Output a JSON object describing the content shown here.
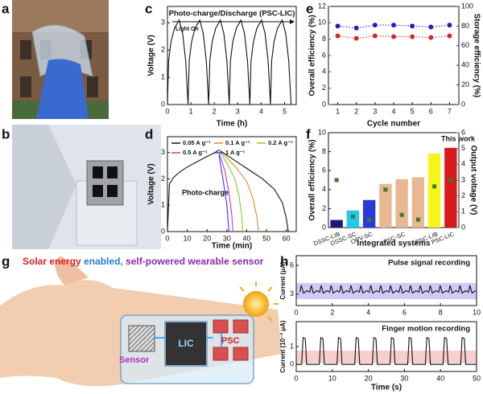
{
  "panels": {
    "labels": [
      "a",
      "b",
      "c",
      "d",
      "e",
      "f",
      "g",
      "h"
    ]
  },
  "illustration": {
    "title_parts": [
      "Solar energy",
      "enabled,",
      "self-powered wearable sensor"
    ],
    "labels": [
      "Sensor",
      "LIC",
      "PSC"
    ]
  },
  "chart_data": [
    {
      "type": "line",
      "title": "Photo-charge/Discharge (PSC-LIC)",
      "title_color": "#b01010",
      "annotations": [
        "Light On"
      ],
      "xlabel": "Time (h)",
      "ylabel": "Voltage (V)",
      "x": [
        0,
        0.05,
        0.15,
        0.3,
        0.5,
        0.65,
        0.78,
        0.88,
        0.93,
        1.03,
        1.18,
        1.38,
        1.53,
        1.66,
        1.76,
        1.81,
        1.91,
        2.06,
        2.26,
        2.41,
        2.54,
        2.64,
        2.69,
        2.79,
        2.94,
        3.14,
        3.29,
        3.42,
        3.52,
        3.57,
        3.67,
        3.82,
        4.02,
        4.17,
        4.3,
        4.4,
        4.45,
        4.55,
        4.7,
        4.9,
        5.05,
        5.18,
        5.28
      ],
      "series": [
        {
          "color": "#111111",
          "values": [
            0,
            1.6,
            2.3,
            2.8,
            3.1,
            2.6,
            1.6,
            0,
            1.6,
            2.3,
            2.8,
            3.1,
            2.6,
            1.6,
            0,
            1.6,
            2.3,
            2.8,
            3.1,
            2.6,
            1.6,
            0,
            1.6,
            2.3,
            2.8,
            3.1,
            2.6,
            1.6,
            0,
            1.6,
            2.3,
            2.8,
            3.1,
            2.6,
            1.6,
            0,
            1.6,
            2.3,
            2.8,
            3.1,
            2.6,
            1.6,
            0
          ]
        }
      ],
      "xlim": [
        0,
        5.5
      ],
      "xticks": [
        0,
        1,
        2,
        3,
        4,
        5
      ],
      "ylim": [
        0,
        3.6
      ],
      "yticks": [
        0,
        1,
        2,
        3
      ]
    },
    {
      "type": "line",
      "annotations": [
        "Photo-charge"
      ],
      "xlabel": "Time (min)",
      "ylabel": "Voltage (V)",
      "legend": "upper left",
      "series": [
        {
          "name": "0.05 A g⁻¹",
          "color": "#111111",
          "x": [
            0,
            1,
            3,
            6,
            10,
            15,
            20,
            24,
            26,
            30,
            36,
            42,
            48,
            54,
            58,
            60,
            61
          ],
          "values": [
            0,
            1.8,
            2.05,
            2.25,
            2.45,
            2.65,
            2.85,
            3.0,
            3.1,
            2.9,
            2.6,
            2.3,
            2.0,
            1.6,
            1.1,
            0.5,
            0
          ]
        },
        {
          "name": "0.1 A g⁻¹",
          "color": "#e6862a",
          "x": [
            26,
            30,
            35,
            40,
            43,
            45,
            46
          ],
          "values": [
            3.1,
            2.8,
            2.4,
            1.9,
            1.3,
            0.6,
            0
          ]
        },
        {
          "name": "0.2 A g⁻¹",
          "color": "#7ed321",
          "x": [
            26,
            30,
            34,
            36,
            37.5,
            38
          ],
          "values": [
            3.1,
            2.6,
            2.0,
            1.4,
            0.6,
            0
          ]
        },
        {
          "name": "0.5 A g⁻¹",
          "color": "#cc33cc",
          "x": [
            26,
            29,
            31,
            32.5,
            33
          ],
          "values": [
            3.0,
            2.3,
            1.5,
            0.6,
            0
          ]
        },
        {
          "name": "1 A g⁻¹",
          "color": "#3333ff",
          "x": [
            26,
            28,
            30,
            31
          ],
          "values": [
            2.9,
            2.0,
            1.0,
            0
          ]
        }
      ],
      "xlim": [
        0,
        65
      ],
      "xticks": [
        0,
        10,
        20,
        30,
        40,
        50,
        60
      ],
      "ylim": [
        0,
        3.6
      ],
      "yticks": [
        0,
        1,
        2,
        3
      ]
    },
    {
      "type": "line",
      "markers": true,
      "linestyle": "dotted",
      "xlabel": "Cycle number",
      "ylabel": "Overall efficiency (%)",
      "y2label": "Storage efficiency (%)",
      "y_color": "#d62728",
      "y2_color": "#1f1fbf",
      "x": [
        1,
        2,
        3,
        4,
        5,
        6,
        7
      ],
      "series": [
        {
          "color": "#d62728",
          "values": [
            8.4,
            8.1,
            8.4,
            8.3,
            8.3,
            8.2,
            8.4
          ]
        },
        {
          "color": "#1f1fbf",
          "axis": "y2",
          "values": [
            80,
            78,
            81,
            81,
            80,
            79,
            81
          ]
        }
      ],
      "xlim": [
        0.5,
        7.5
      ],
      "xticks": [
        1,
        2,
        3,
        4,
        5,
        6,
        7
      ],
      "ylim": [
        0,
        12
      ],
      "yticks": [
        0,
        2,
        4,
        6,
        8,
        10,
        12
      ],
      "y2lim": [
        0,
        100
      ],
      "y2ticks": [
        0,
        20,
        40,
        60,
        80,
        100
      ]
    },
    {
      "type": "bar",
      "annotations": [
        "This work"
      ],
      "xlabel": "Integrated systems",
      "ylabel": "Overall efficiency (%)",
      "y2label": "Output voltage (V)",
      "y2_color": "#3a9a2a",
      "categories": [
        "DSSC-LIB",
        "DSSC-SC",
        "OPV-SC",
        null,
        "PSC-SC",
        null,
        "PSC-LIB",
        "PSC-LIC"
      ],
      "values": [
        0.8,
        1.8,
        2.9,
        4.6,
        5.1,
        5.3,
        7.8,
        8.4
      ],
      "colors": [
        "#1a1a7a",
        "#22c8e8",
        "#2a3ad8",
        "#e8b890",
        "#e8b890",
        "#e8b890",
        "#f5f51a",
        "#d81a1a"
      ],
      "series": [
        {
          "axis": "y2",
          "marker": "square",
          "color": "#3a7a2a",
          "values": [
            3.0,
            0.7,
            0.5,
            2.4,
            0.8,
            0.5,
            2.6,
            3.0
          ]
        }
      ],
      "ylim": [
        0,
        10
      ],
      "yticks": [
        0,
        2,
        4,
        6,
        8,
        10
      ],
      "y2lim": [
        0,
        6
      ],
      "y2ticks": [
        0,
        1,
        2,
        3,
        4,
        5,
        6
      ]
    },
    {
      "type": "line",
      "title": "Pulse signal recording",
      "title_color": "#1f1fd0",
      "ylabel": "Current (μA)",
      "x": [
        0.2,
        0.28,
        0.4,
        0.6,
        0.75,
        0.83,
        0.95,
        1.15,
        1.3,
        1.38,
        1.5,
        1.7,
        1.85,
        1.93,
        2.05,
        2.25,
        2.4,
        2.48,
        2.6,
        2.8,
        2.95,
        3.03,
        3.15,
        3.35,
        3.5,
        3.58,
        3.7,
        3.9,
        4.05,
        4.13,
        4.25,
        4.45,
        4.6,
        4.68,
        4.8,
        5.0,
        5.15,
        5.23,
        5.35,
        5.55,
        5.7,
        5.78,
        5.9,
        6.1,
        6.25,
        6.33,
        6.45,
        6.65,
        6.8,
        6.88,
        7.0,
        7.2,
        7.35,
        7.43,
        7.55,
        7.75,
        7.9,
        7.98,
        8.1,
        8.3,
        8.45,
        8.53,
        8.65,
        8.85,
        9.0,
        9.08,
        9.2,
        9.4,
        9.55,
        9.63,
        9.75,
        9.95
      ],
      "series": [
        {
          "color": "#111111",
          "values": [
            3.2,
            3.9,
            3.1,
            3.35,
            3.2,
            3.9,
            3.1,
            3.35,
            3.2,
            3.9,
            3.1,
            3.35,
            3.2,
            3.9,
            3.1,
            3.35,
            3.2,
            3.9,
            3.1,
            3.35,
            3.2,
            3.9,
            3.1,
            3.35,
            3.2,
            3.9,
            3.1,
            3.35,
            3.2,
            3.9,
            3.1,
            3.35,
            3.2,
            3.9,
            3.1,
            3.35,
            3.2,
            3.9,
            3.1,
            3.35,
            3.2,
            3.9,
            3.1,
            3.35,
            3.2,
            3.9,
            3.1,
            3.35,
            3.2,
            3.9,
            3.1,
            3.35,
            3.2,
            3.9,
            3.1,
            3.35,
            3.2,
            3.9,
            3.1,
            3.35,
            3.2,
            3.9,
            3.1,
            3.35,
            3.2,
            3.9,
            3.1,
            3.35,
            3.2,
            3.9,
            3.1,
            3.35
          ]
        }
      ],
      "xlim": [
        0,
        10
      ],
      "xticks": [
        0,
        2,
        4,
        6,
        8,
        10
      ],
      "ylim": [
        1.8,
        7
      ],
      "yticks": [
        3,
        6
      ]
    },
    {
      "type": "line",
      "title": "Finger motion recording",
      "title_color": "#d62728",
      "xlabel": "Time (s)",
      "ylabel": "Current (10⁻² μA)",
      "x": [
        0,
        1.5,
        1.9,
        2.5,
        2.9,
        6.4,
        6.8,
        7.4,
        7.8,
        11.3,
        11.7,
        12.3,
        12.7,
        16.2,
        16.6,
        17.2,
        17.6,
        21.1,
        21.5,
        22.1,
        22.5,
        26.0,
        26.4,
        27.0,
        27.4,
        30.9,
        31.3,
        31.9,
        32.3,
        35.8,
        36.2,
        36.8,
        37.2,
        40.7,
        41.1,
        41.7,
        42.1,
        45.6,
        46.0,
        46.6,
        47.0,
        50
      ],
      "series": [
        {
          "color": "#111111",
          "values": [
            0,
            0,
            1.5,
            1.45,
            0,
            0,
            1.5,
            1.45,
            0,
            0,
            1.5,
            1.45,
            0,
            0,
            1.5,
            1.45,
            0,
            0,
            1.5,
            1.45,
            0,
            0,
            1.5,
            1.45,
            0,
            0,
            1.5,
            1.45,
            0,
            0,
            1.5,
            1.45,
            0,
            0,
            1.5,
            1.45,
            0,
            0,
            1.5,
            1.45,
            0,
            0
          ]
        }
      ],
      "xlim": [
        0,
        50
      ],
      "xticks": [
        0,
        10,
        20,
        30,
        40,
        50
      ],
      "ylim": [
        -0.4,
        2.4
      ],
      "yticks": [
        0,
        1
      ]
    }
  ]
}
